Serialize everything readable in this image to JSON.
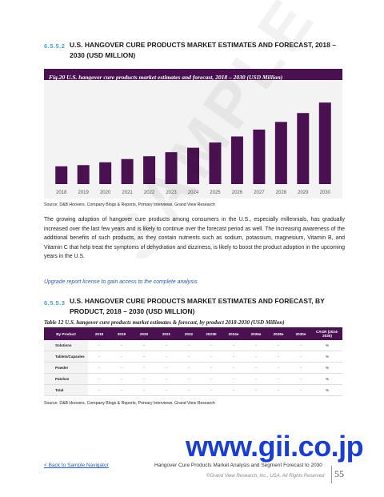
{
  "section1": {
    "number": "6.5.5.2",
    "title": "U.S. HANGOVER CURE PRODUCTS MARKET ESTIMATES AND FORECAST, 2018 – 2030 (USD MILLION)"
  },
  "figure": {
    "caption": "Fig.20 U.S. hangover cure products market estimates and forecast, 2018 – 2030 (USD Million)"
  },
  "chart_data": {
    "type": "bar",
    "categories": [
      "2018",
      "2019",
      "2020",
      "2021",
      "2022",
      "2023",
      "2024",
      "2025",
      "2026",
      "2027",
      "2028",
      "2029",
      "2030"
    ],
    "values": [
      22,
      23.5,
      27,
      31,
      34.5,
      39.5,
      45,
      51.5,
      59,
      67.5,
      77,
      88,
      101
    ],
    "ylim": [
      0,
      115
    ],
    "bar_color": "#4a1150",
    "grid": false
  },
  "source1": "Source: D&B Hoovers, Company Blogs & Reports, Primary Interviews, Grand View Research",
  "paragraph": "The growing adoption of hangover cure products among consumers in the U.S., especially millennials, has gradually increased over the last few years and is likely to continue over the forecast period as well. The increasing awareness of the additional benefits of such products, as they contain nutrients such as sodium, potassium, magnesium, Vitamin B, and Vitamin C that help treat the symptoms of dehydration and dizziness, is likely to boost the product adoption in the upcoming years in the U.S.",
  "upgrade_note": "Upgrade report license to gain access to the complete analysis.",
  "section2": {
    "number": "6.5.5.3",
    "title": "U.S. HANGOVER CURE PRODUCTS MARKET ESTIMATES AND FORECAST, BY PRODUCT, 2018 – 2030 (USD MILLION)"
  },
  "table": {
    "caption": "Table 12 U.S. hangover cure products market estimates & forecast, by product 2018-2030 (USD Million)",
    "headers": [
      "By Product",
      "2018",
      "2019",
      "2020",
      "2021",
      "2022",
      "2023E",
      "2024e",
      "2026e",
      "2028e",
      "2030e",
      "CAGR (2024-2030)"
    ],
    "rows": [
      [
        "Solutions",
        "-",
        "-",
        "-",
        "-",
        "-",
        "-",
        "-",
        "-",
        "-",
        "-",
        "%"
      ],
      [
        "Tablets/Capsules",
        "-",
        "-",
        "-",
        "-",
        "-",
        "-",
        "-",
        "-",
        "-",
        "-",
        "%"
      ],
      [
        "Powder",
        "-",
        "-",
        "-",
        "-",
        "-",
        "-",
        "-",
        "-",
        "-",
        "-",
        "%"
      ],
      [
        "Patches",
        "-",
        "-",
        "-",
        "-",
        "-",
        "-",
        "-",
        "-",
        "-",
        "-",
        "%"
      ],
      [
        "Total",
        "-",
        "-",
        "-",
        "-",
        "-",
        "-",
        "-",
        "-",
        "-",
        "-",
        "%"
      ]
    ]
  },
  "source2": "Source: D&B Hoovers, Company Blogs & Reports, Primary Interviews, Grand View Research",
  "watermark": "SAMPLE",
  "brand": "www.gii.co.jp",
  "footer": {
    "back_link": "< Back to Sample Navigator",
    "report_title": "Hangover Cure Products Market Analysis and Segment Forecast to 2030",
    "copyright": "©Grand View Research, Inc., USA. All Rights Reserved",
    "page_number": "55"
  }
}
